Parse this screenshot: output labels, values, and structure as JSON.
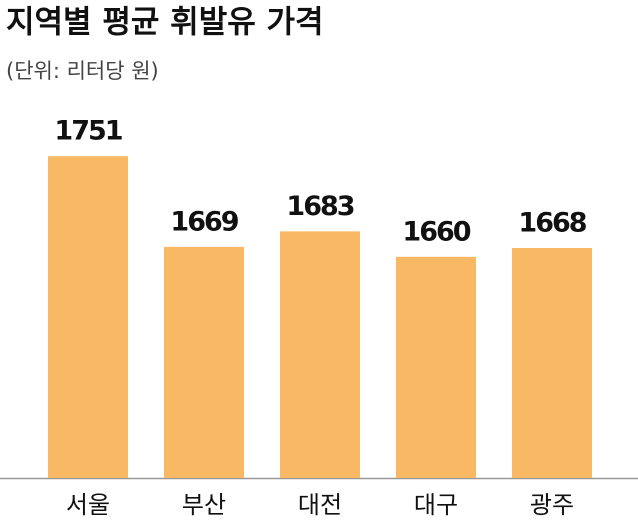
{
  "chart_data": {
    "type": "bar",
    "title": "지역별 평균 휘발유 가격",
    "subtitle": "(단위: 리터당 원)",
    "categories": [
      "서울",
      "부산",
      "대전",
      "대구",
      "광주"
    ],
    "values": [
      1751,
      1669,
      1683,
      1660,
      1668
    ],
    "color": "#f9b864",
    "ylim": [
      1460,
      1800
    ]
  }
}
